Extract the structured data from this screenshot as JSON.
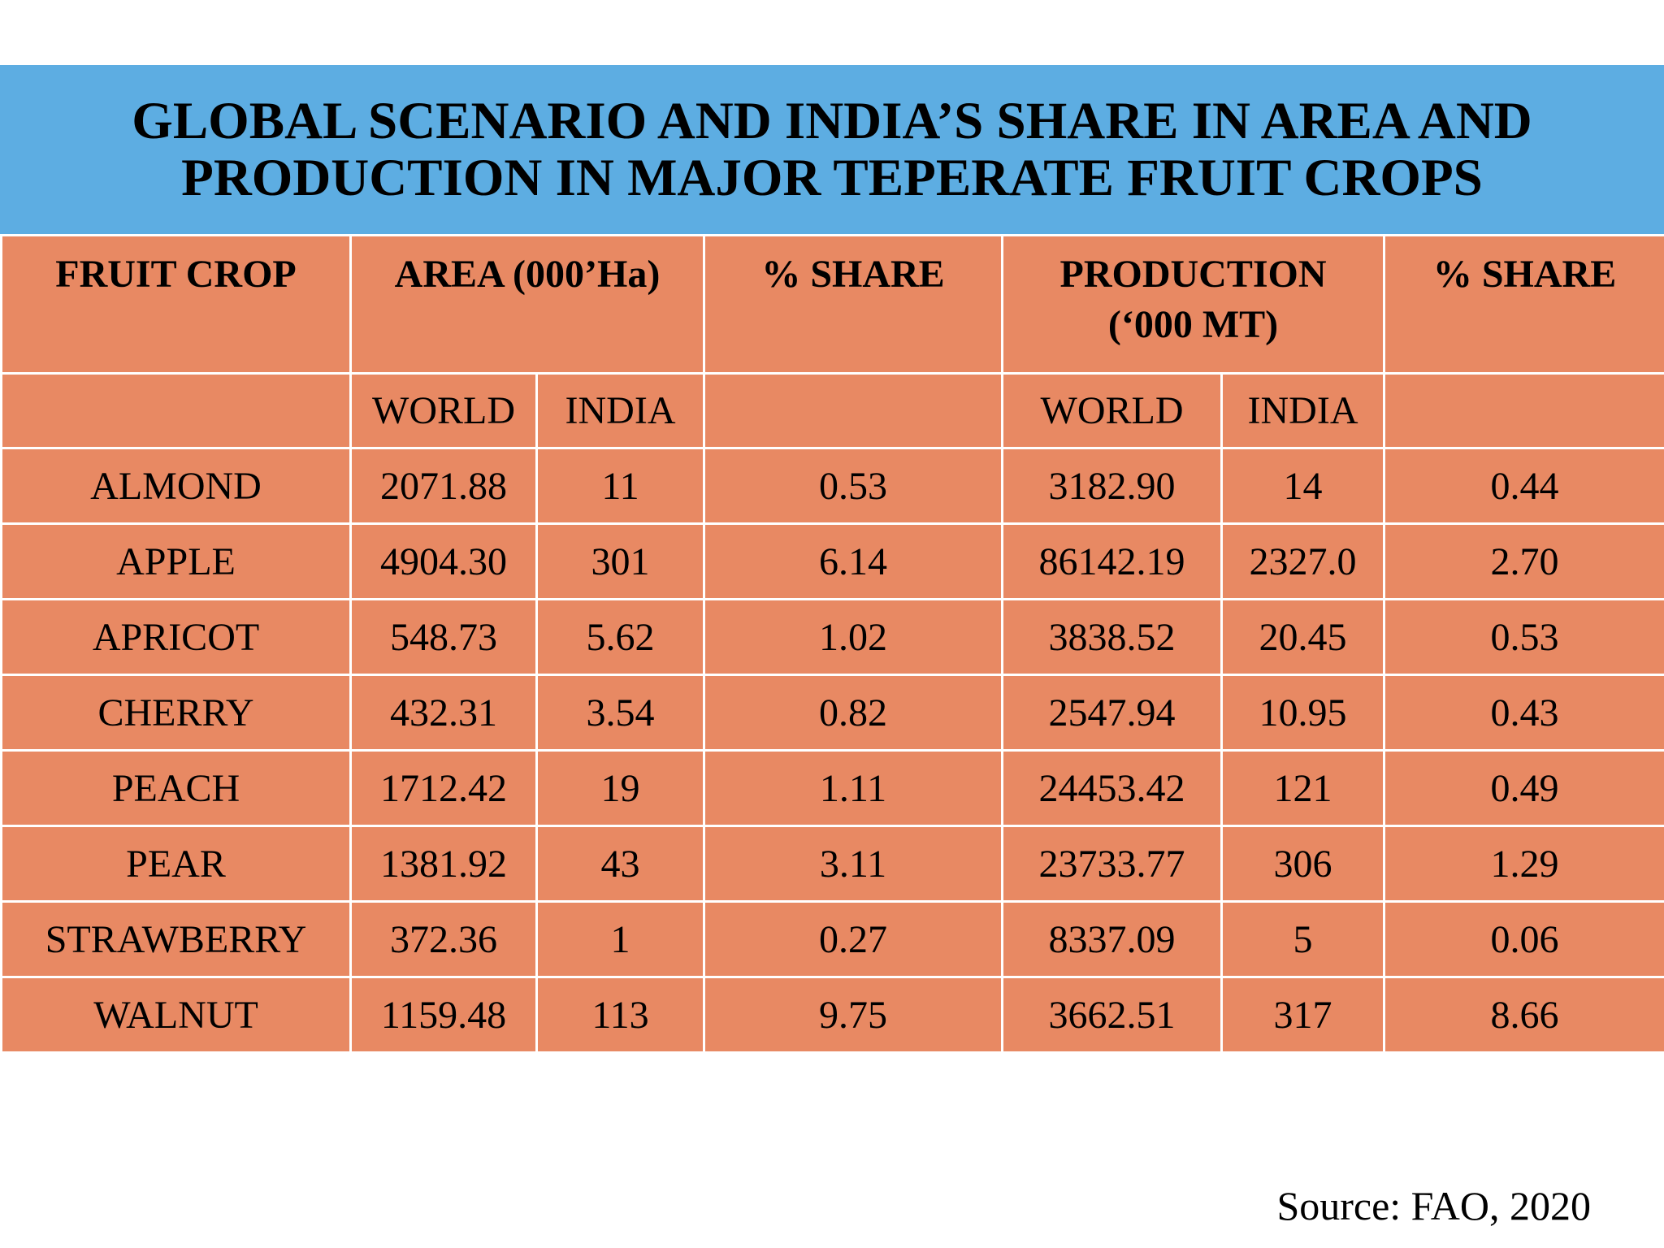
{
  "title": {
    "line1": "GLOBAL SCENARIO AND INDIA’S SHARE IN AREA AND",
    "line2": "PRODUCTION IN MAJOR TEPERATE FRUIT CROPS"
  },
  "table": {
    "headers": {
      "fruit_crop": "FRUIT CROP",
      "area": "AREA (000’Ha)",
      "area_share": "% SHARE",
      "production_line1": "PRODUCTION",
      "production_line2": "(‘000 MT)",
      "production_share": "% SHARE"
    },
    "subheaders": {
      "area_world": "WORLD",
      "area_india": "INDIA",
      "production_world": "WORLD",
      "production_india": "INDIA"
    },
    "rows": [
      {
        "crop": "ALMOND",
        "area_world": "2071.88",
        "area_india": "11",
        "area_share": "0.53",
        "prod_world": "3182.90",
        "prod_india": "14",
        "prod_share": "0.44"
      },
      {
        "crop": "APPLE",
        "area_world": "4904.30",
        "area_india": "301",
        "area_share": "6.14",
        "prod_world": "86142.19",
        "prod_india": "2327.0",
        "prod_share": "2.70"
      },
      {
        "crop": "APRICOT",
        "area_world": "548.73",
        "area_india": "5.62",
        "area_share": "1.02",
        "prod_world": "3838.52",
        "prod_india": "20.45",
        "prod_share": "0.53"
      },
      {
        "crop": "CHERRY",
        "area_world": "432.31",
        "area_india": "3.54",
        "area_share": "0.82",
        "prod_world": "2547.94",
        "prod_india": "10.95",
        "prod_share": "0.43"
      },
      {
        "crop": "PEACH",
        "area_world": "1712.42",
        "area_india": "19",
        "area_share": "1.11",
        "prod_world": "24453.42",
        "prod_india": "121",
        "prod_share": "0.49"
      },
      {
        "crop": "PEAR",
        "area_world": "1381.92",
        "area_india": "43",
        "area_share": "3.11",
        "prod_world": "23733.77",
        "prod_india": "306",
        "prod_share": "1.29"
      },
      {
        "crop": "STRAWBERRY",
        "area_world": "372.36",
        "area_india": "1",
        "area_share": "0.27",
        "prod_world": "8337.09",
        "prod_india": "5",
        "prod_share": "0.06"
      },
      {
        "crop": "WALNUT",
        "area_world": "1159.48",
        "area_india": "113",
        "area_share": "9.75",
        "prod_world": "3662.51",
        "prod_india": "317",
        "prod_share": "8.66"
      }
    ]
  },
  "source": "Source: FAO, 2020",
  "colors": {
    "title_band": "#5dade2",
    "table_fill": "#e88963",
    "grid_lines": "#ffffff"
  }
}
